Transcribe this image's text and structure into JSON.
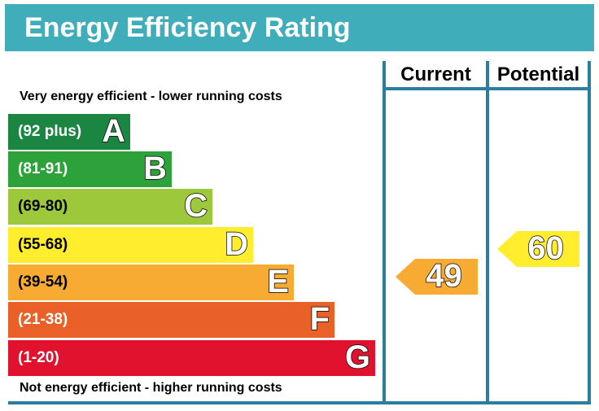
{
  "title": "Energy Efficiency Rating",
  "top_note": "Very energy efficient - lower running costs",
  "bottom_note": "Not energy efficient - higher running costs",
  "columns": {
    "current": "Current",
    "potential": "Potential"
  },
  "chart_data": {
    "type": "bar",
    "bands": [
      {
        "letter": "A",
        "range": "(92 plus)",
        "color": "#1b8641"
      },
      {
        "letter": "B",
        "range": "(81-91)",
        "color": "#2ea23a"
      },
      {
        "letter": "C",
        "range": "(69-80)",
        "color": "#9dc83c"
      },
      {
        "letter": "D",
        "range": "(55-68)",
        "color": "#ffed2e"
      },
      {
        "letter": "E",
        "range": "(39-54)",
        "color": "#f7ab33"
      },
      {
        "letter": "F",
        "range": "(21-38)",
        "color": "#ea6029"
      },
      {
        "letter": "G",
        "range": "(1-20)",
        "color": "#e0122e"
      }
    ],
    "current": {
      "value": "49",
      "band": "E",
      "color": "#f7ab33"
    },
    "potential": {
      "value": "60",
      "band": "D",
      "color": "#ffed2e"
    }
  }
}
